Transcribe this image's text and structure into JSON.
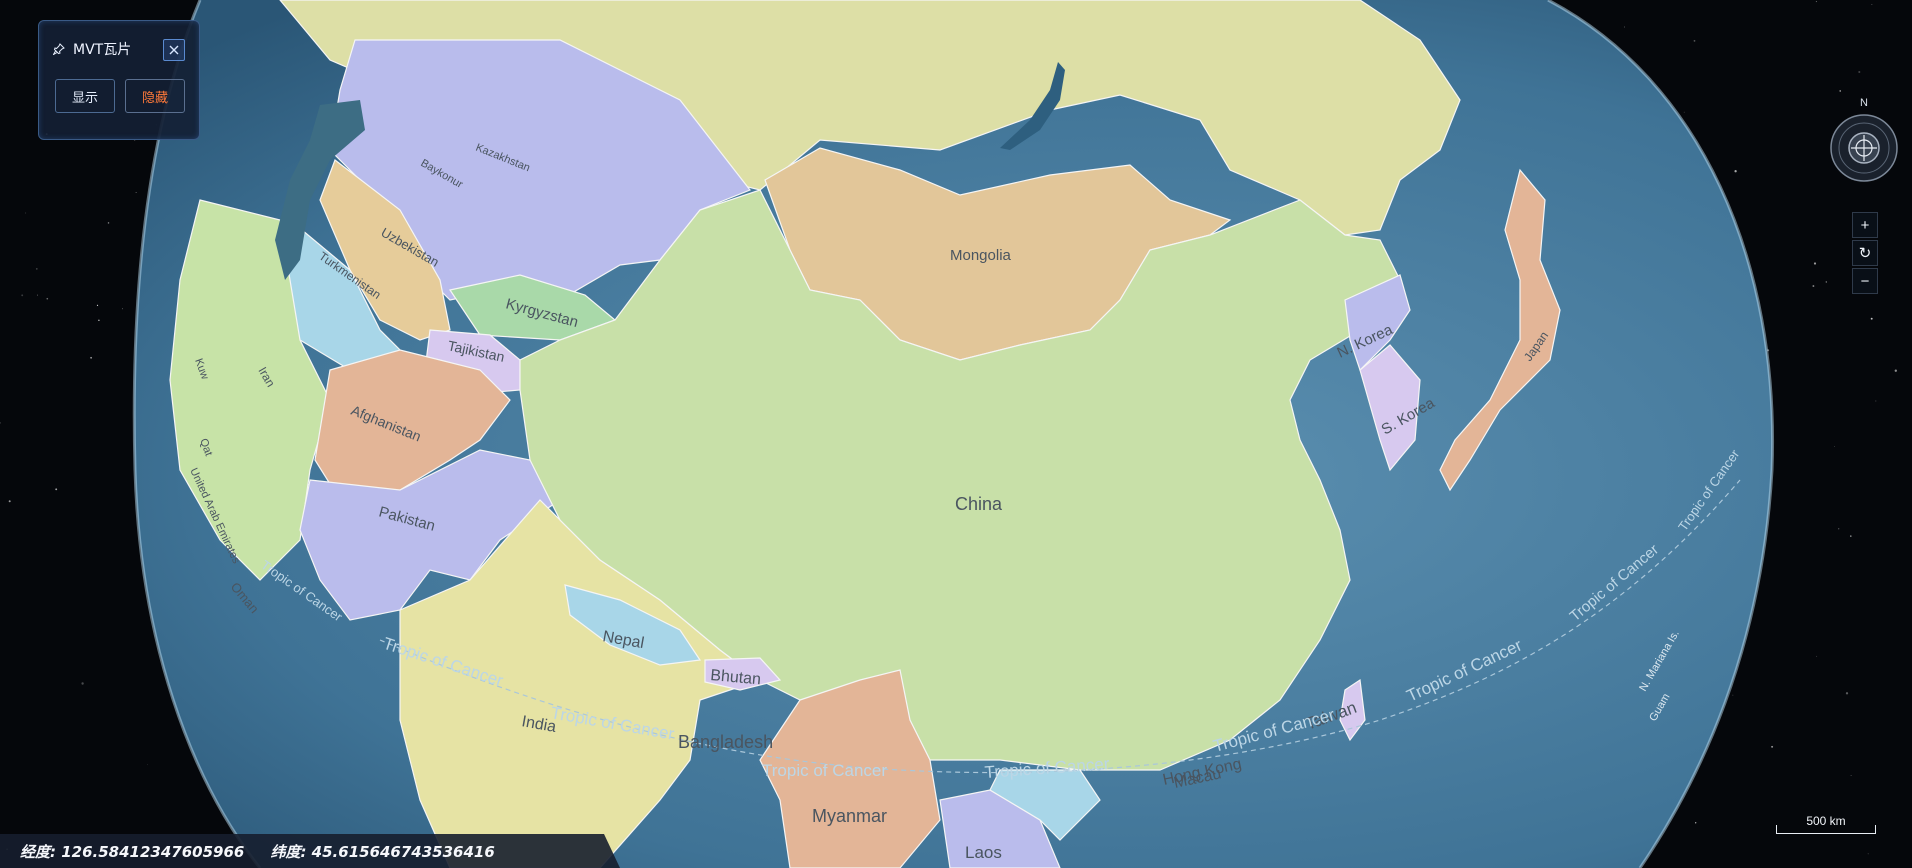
{
  "panel": {
    "title": "MVT瓦片",
    "show_label": "显示",
    "hide_label": "隐藏"
  },
  "compass": {
    "north_label": "N"
  },
  "nav": {
    "zoom_in": "+",
    "reset": "↻",
    "zoom_out": "−"
  },
  "scale": {
    "label": "500 km"
  },
  "coords": {
    "text": "经度: 126.58412347605966     纬度: 45.615646743536416"
  },
  "colors": {
    "ocean": "#4f86a6",
    "china": "#c8e0a8",
    "russia": "#dddfa6",
    "mongolia": "#e2c699",
    "kazakhstan": "#b9bcec",
    "india": "#e6e3a4",
    "highlight_text": "#ff7a3a"
  },
  "map_labels": {
    "china": "China",
    "mongolia": "Mongolia",
    "kazakhstan": "Kazakhstan",
    "baykonur": "Baykonur",
    "uzbekistan": "Uzbekistan",
    "turkmenistan": "Turkmenistan",
    "kyrgyzstan": "Kyrgyzstan",
    "tajikistan": "Tajikistan",
    "afghanistan": "Afghanistan",
    "pakistan": "Pakistan",
    "iran": "Iran",
    "nepal": "Nepal",
    "bhutan": "Bhutan",
    "india": "India",
    "bangladesh": "Bangladesh",
    "myanmar": "Myanmar",
    "laos": "Laos",
    "n_korea": "N. Korea",
    "s_korea": "S. Korea",
    "japan": "Japan",
    "taiwan": "Taiwan",
    "macau": "Macau",
    "hong_kong": "Hong Kong",
    "oman": "Oman",
    "uae": "United Arab Emirates",
    "kuwait": "Kuw",
    "qatar": "Qat",
    "n_mariana": "N. Mariana Is.",
    "guam": "Guam",
    "tropic_1": "Tropic of Cancer",
    "tropic_2": "Tropic of Cancer",
    "tropic_3": "Tropic of Cancer",
    "tropic_4": "Tropic of Cancer",
    "tropic_5": "Tropic of Cancer",
    "tropic_6": "Tropic of Cancer",
    "tropic_7": "Tropic of Cancer",
    "tropic_8": "Tropic of Cancer",
    "tropic_9": "Tropic of Cancer"
  }
}
